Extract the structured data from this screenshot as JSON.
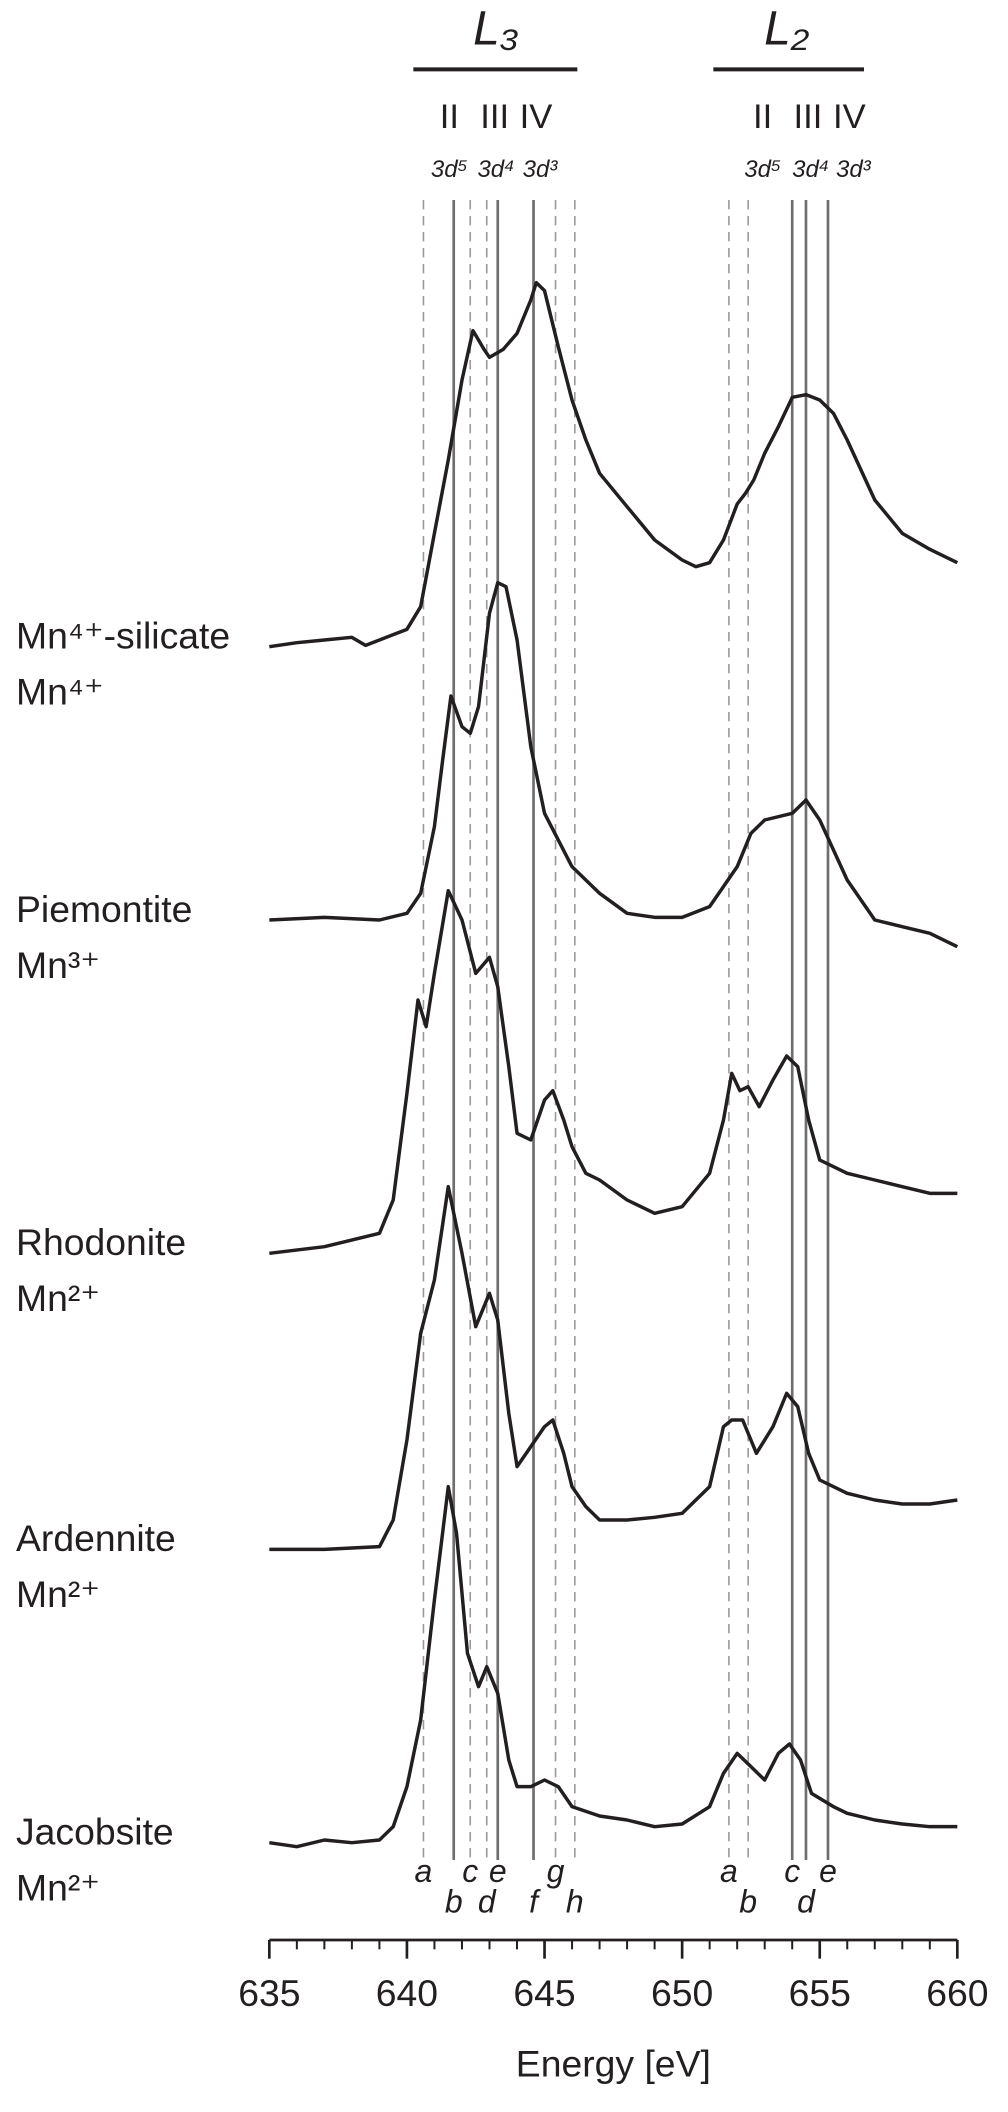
{
  "chart_data": {
    "type": "line",
    "x_label": "Energy [eV]",
    "xlim": [
      635,
      660
    ],
    "xticks": [
      635,
      640,
      645,
      650,
      655,
      660
    ],
    "xminorticks": [
      635,
      636,
      637,
      638,
      639,
      640,
      641,
      642,
      643,
      644,
      645,
      646,
      647,
      648,
      649,
      650,
      651,
      652,
      653,
      654,
      655,
      656,
      657,
      658,
      659,
      660
    ],
    "ylim": [
      0,
      129
    ],
    "line_color": "#231f20",
    "edges": [
      {
        "label": "L₃",
        "valence": [
          "II",
          "III",
          "IV"
        ],
        "configs": [
          "3d⁵",
          "3d⁴",
          "3d³"
        ]
      },
      {
        "label": "L₂",
        "valence": [
          "II",
          "III",
          "IV"
        ],
        "configs": [
          "3d⁵",
          "3d⁴",
          "3d³"
        ]
      }
    ],
    "reference_lines": [
      {
        "x": 640.6,
        "label": "a",
        "style": "dashed"
      },
      {
        "x": 641.7,
        "label": "b",
        "style": "solid"
      },
      {
        "x": 642.3,
        "label": "c",
        "style": "dashed"
      },
      {
        "x": 642.9,
        "label": "d",
        "style": "dashed"
      },
      {
        "x": 643.3,
        "label": "e",
        "style": "solid"
      },
      {
        "x": 644.6,
        "label": "f",
        "style": "solid"
      },
      {
        "x": 645.4,
        "label": "g",
        "style": "dashed"
      },
      {
        "x": 646.1,
        "label": "h",
        "style": "dashed"
      },
      {
        "x": 651.7,
        "label": "a",
        "style": "dashed"
      },
      {
        "x": 652.4,
        "label": "b",
        "style": "dashed"
      },
      {
        "x": 654.0,
        "label": "c",
        "style": "solid"
      },
      {
        "x": 654.5,
        "label": "d",
        "style": "solid"
      },
      {
        "x": 655.3,
        "label": "e",
        "style": "solid"
      }
    ],
    "series": [
      {
        "name": "Mn⁴⁺-silicate",
        "oxidation": "Mn⁴⁺",
        "x": [
          635,
          636,
          637,
          638,
          638.5,
          639,
          639.5,
          640,
          640.5,
          641,
          641.5,
          642,
          642.4,
          642.6,
          642.8,
          643,
          643.5,
          644,
          644.5,
          644.7,
          645,
          645.5,
          646,
          646.5,
          647,
          648,
          649,
          650,
          650.5,
          651,
          651.5,
          652,
          652.3,
          652.6,
          653,
          653.5,
          654,
          654.5,
          655,
          655.5,
          656,
          657,
          658,
          659,
          660
        ],
        "values": [
          95.5,
          95.8,
          96,
          96.2,
          95.6,
          96,
          96.4,
          96.8,
          98.5,
          104,
          109.5,
          115.5,
          119.2,
          118.5,
          117.8,
          117.2,
          117.8,
          119,
          121.5,
          122.8,
          122.2,
          118,
          114,
          111,
          108.5,
          106,
          103.5,
          102,
          101.5,
          101.8,
          103.5,
          106.2,
          107,
          108,
          110,
          112,
          114.2,
          114.4,
          114,
          113,
          111,
          106.5,
          104,
          102.8,
          101.8
        ]
      },
      {
        "name": "Piemontite",
        "oxidation": "Mn³⁺",
        "x": [
          635,
          637,
          639,
          640,
          640.5,
          641,
          641.3,
          641.6,
          642,
          642.3,
          642.6,
          643,
          643.3,
          643.6,
          644,
          644.5,
          645,
          646,
          647,
          648,
          649,
          650,
          651,
          652,
          652.5,
          653,
          654,
          654.5,
          655,
          656,
          657,
          658,
          659,
          660
        ],
        "values": [
          75,
          75.2,
          75,
          75.5,
          77,
          82,
          87,
          91.8,
          89.5,
          89,
          91,
          98,
          100.3,
          100,
          96,
          88,
          83,
          79,
          77,
          75.5,
          75.2,
          75.2,
          76,
          79,
          81.5,
          82.5,
          83,
          84,
          82.5,
          78,
          75,
          74.5,
          74,
          73
        ]
      },
      {
        "name": "Rhodonite",
        "oxidation": "Mn²⁺",
        "x": [
          635,
          637,
          639,
          639.5,
          640,
          640.4,
          640.7,
          641,
          641.5,
          642,
          642.5,
          643,
          643.3,
          643.7,
          644,
          644.5,
          645,
          645.3,
          645.7,
          646,
          646.5,
          647,
          648,
          649,
          650,
          651,
          651.5,
          651.8,
          652.1,
          652.4,
          652.8,
          653.3,
          653.8,
          654.2,
          654.6,
          655,
          656,
          657,
          658,
          659,
          660
        ],
        "values": [
          50,
          50.5,
          51.5,
          54,
          62,
          69,
          67,
          71,
          77.2,
          75,
          71,
          72.2,
          70,
          64,
          59,
          58.5,
          61.5,
          62.2,
          60,
          58,
          56,
          55.5,
          54,
          53,
          53.5,
          56,
          60,
          63.5,
          62.2,
          62.5,
          61,
          63,
          64.8,
          64,
          60,
          57,
          56,
          55.5,
          55,
          54.5,
          54.5
        ]
      },
      {
        "name": "Ardennite",
        "oxidation": "Mn²⁺",
        "x": [
          635,
          637,
          639,
          639.5,
          640,
          640.5,
          641,
          641.5,
          642,
          642.5,
          643,
          643.3,
          643.7,
          644,
          644.5,
          645,
          645.3,
          645.7,
          646,
          646.5,
          647,
          648,
          649,
          650,
          651,
          651.5,
          651.8,
          652.2,
          652.7,
          653.3,
          653.8,
          654.2,
          654.6,
          655,
          656,
          657,
          658,
          659,
          660
        ],
        "values": [
          27.8,
          27.8,
          28,
          30,
          36,
          44,
          48,
          55,
          50,
          44.5,
          47,
          45,
          38,
          34,
          35.5,
          37,
          37.5,
          35,
          32.5,
          31,
          30,
          30,
          30.2,
          30.5,
          32.5,
          37,
          37.5,
          37.5,
          35,
          37,
          39.5,
          38.5,
          35,
          33,
          32,
          31.5,
          31.2,
          31.2,
          31.5
        ]
      },
      {
        "name": "Jacobsite",
        "oxidation": "Mn²⁺",
        "x": [
          635,
          636,
          637,
          638,
          639,
          639.5,
          640,
          640.5,
          641,
          641.5,
          641.8,
          642.2,
          642.6,
          642.9,
          643.3,
          643.7,
          644,
          644.5,
          645,
          645.5,
          646,
          647,
          648,
          649,
          650,
          651,
          651.5,
          652,
          652.5,
          653,
          653.5,
          653.9,
          654.3,
          654.7,
          655.5,
          656,
          657,
          658,
          659,
          660
        ],
        "values": [
          5.8,
          5.5,
          6,
          5.8,
          6,
          7,
          10,
          15,
          24,
          32.5,
          29,
          20,
          17.5,
          19,
          17,
          12,
          10,
          10,
          10.5,
          10,
          8.5,
          7.8,
          7.5,
          7,
          7.2,
          8.5,
          11,
          12.5,
          11.5,
          10.5,
          12.5,
          13.2,
          12,
          9.5,
          8.5,
          8,
          7.5,
          7.2,
          7,
          7
        ]
      }
    ]
  }
}
